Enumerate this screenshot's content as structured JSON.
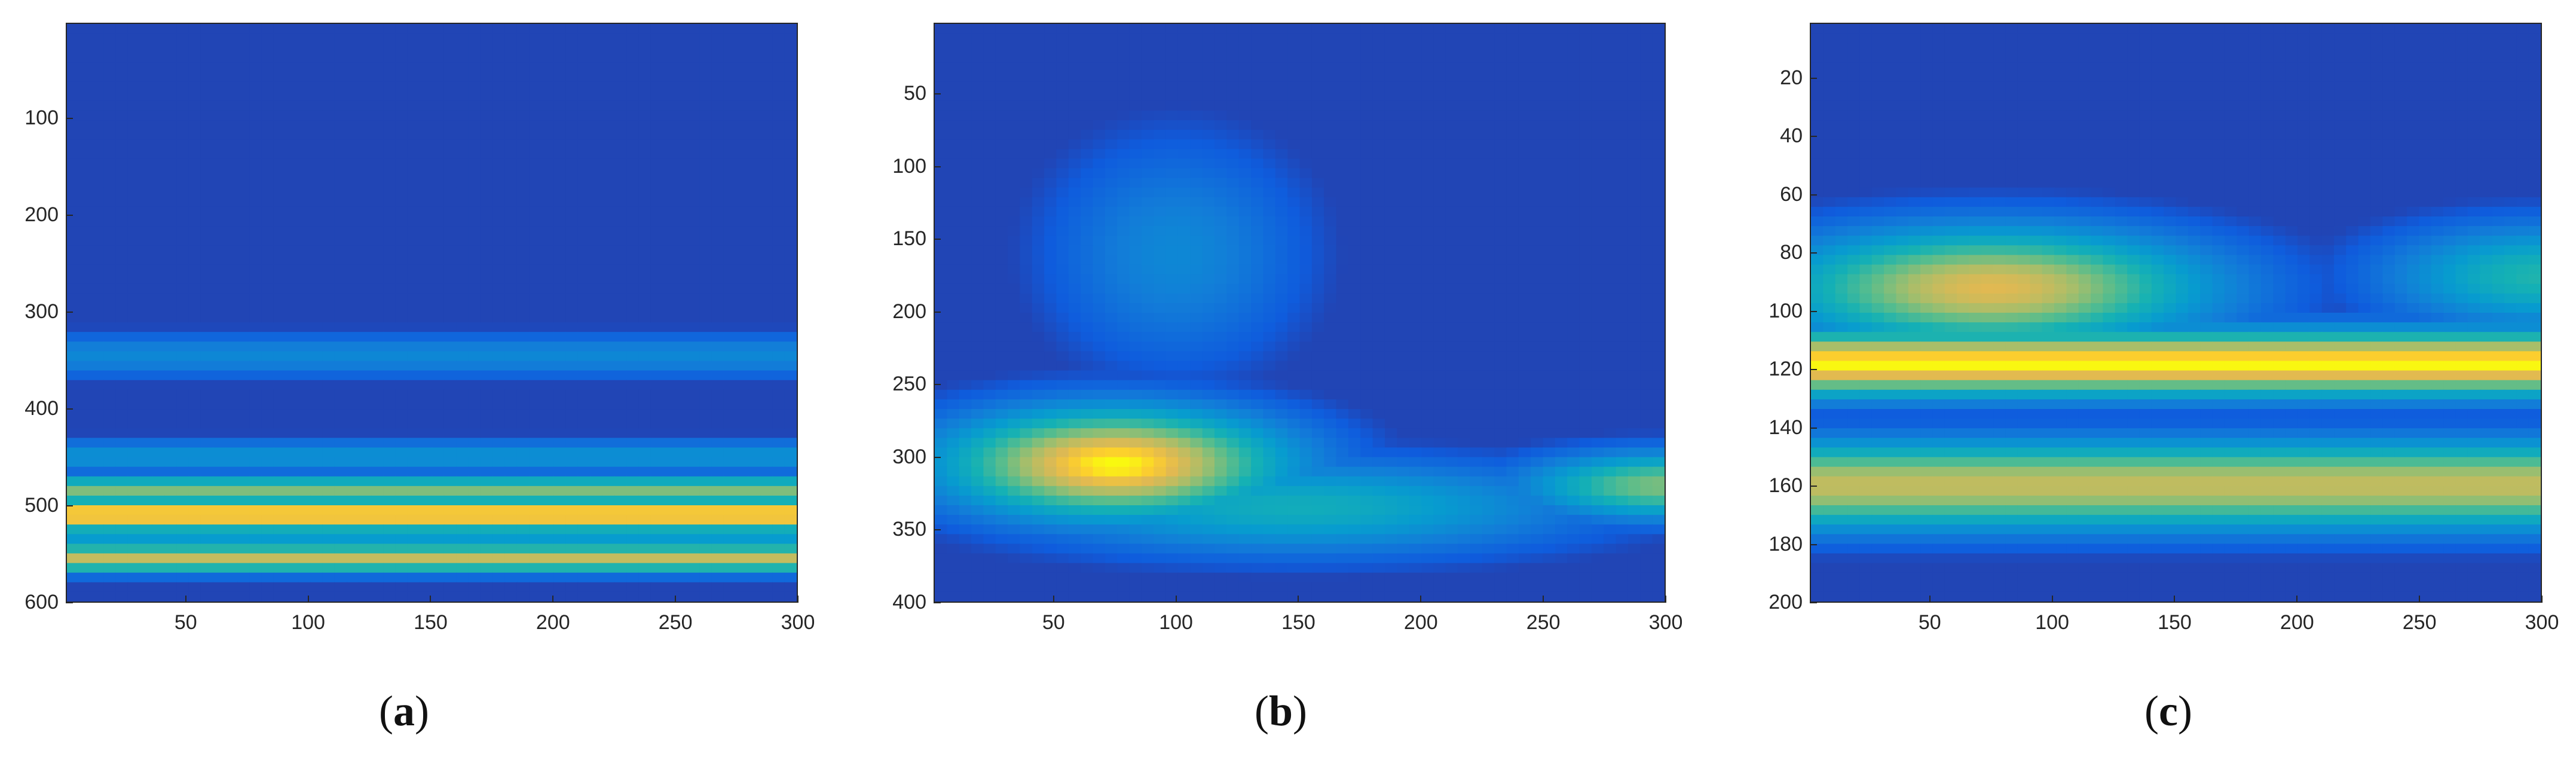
{
  "chart_data": [
    {
      "type": "heatmap",
      "caption_letter": "a",
      "x_ticks": [
        50,
        100,
        150,
        200,
        250,
        300
      ],
      "y_ticks": [
        100,
        200,
        300,
        400,
        500,
        600
      ],
      "xlim": [
        1,
        300
      ],
      "ylim": [
        1,
        600
      ],
      "y_reversed": true,
      "colormap": "parula",
      "bands": [
        {
          "center": 510,
          "width": 14,
          "value": 1.0
        },
        {
          "center": 555,
          "width": 12,
          "value": 0.85
        },
        {
          "center": 485,
          "width": 12,
          "value": 0.75
        },
        {
          "center": 530,
          "width": 8,
          "value": 0.55
        },
        {
          "center": 345,
          "width": 18,
          "value": 0.35
        },
        {
          "center": 450,
          "width": 14,
          "value": 0.4
        }
      ]
    },
    {
      "type": "heatmap",
      "caption_letter": "b",
      "x_ticks": [
        50,
        100,
        150,
        200,
        250,
        300
      ],
      "y_ticks": [
        50,
        100,
        150,
        200,
        250,
        300,
        350,
        400
      ],
      "xlim": [
        1,
        300
      ],
      "ylim": [
        1,
        400
      ],
      "y_reversed": true,
      "colormap": "parula",
      "blobs": [
        {
          "x": 75,
          "y": 305,
          "sx": 55,
          "sy": 30,
          "value": 1.0
        },
        {
          "x": 300,
          "y": 320,
          "sx": 45,
          "sy": 18,
          "value": 0.75
        },
        {
          "x": 150,
          "y": 335,
          "sx": 90,
          "sy": 25,
          "value": 0.55
        },
        {
          "x": 100,
          "y": 160,
          "sx": 40,
          "sy": 60,
          "value": 0.35
        }
      ]
    },
    {
      "type": "heatmap",
      "caption_letter": "c",
      "x_ticks": [
        50,
        100,
        150,
        200,
        250,
        300
      ],
      "y_ticks": [
        20,
        40,
        60,
        80,
        100,
        120,
        140,
        160,
        180,
        200
      ],
      "xlim": [
        1,
        300
      ],
      "ylim": [
        1,
        200
      ],
      "y_reversed": true,
      "colormap": "parula",
      "bands": [
        {
          "center": 118,
          "width": 9,
          "value": 1.0
        },
        {
          "center": 160,
          "width": 12,
          "value": 0.85
        }
      ],
      "blobs": [
        {
          "x": 75,
          "y": 92,
          "sx": 70,
          "sy": 16,
          "value": 0.9
        },
        {
          "x": 300,
          "y": 88,
          "sx": 50,
          "sy": 14,
          "value": 0.6
        }
      ]
    }
  ]
}
